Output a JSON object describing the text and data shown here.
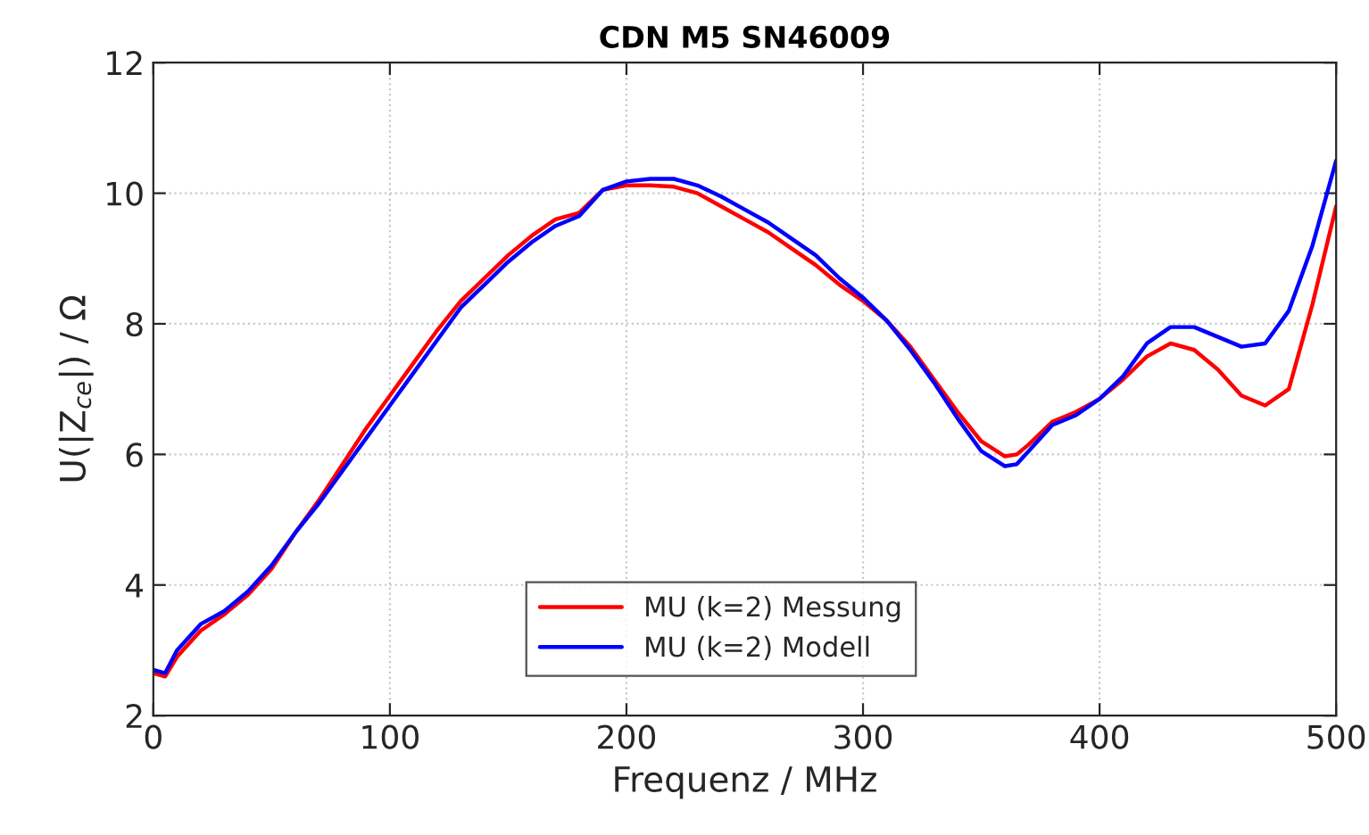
{
  "chart_data": {
    "type": "line",
    "title": "CDN M5 SN46009",
    "xlabel": "Frequenz / MHz",
    "ylabel": "U(|Z$_{ce}$|) / Ω",
    "x": [
      0,
      5,
      10,
      20,
      30,
      40,
      50,
      60,
      70,
      80,
      90,
      100,
      110,
      120,
      130,
      140,
      150,
      160,
      170,
      180,
      190,
      200,
      210,
      220,
      230,
      240,
      250,
      260,
      270,
      280,
      290,
      300,
      310,
      320,
      330,
      340,
      350,
      360,
      365,
      370,
      380,
      390,
      400,
      410,
      420,
      430,
      440,
      450,
      460,
      470,
      480,
      490,
      500
    ],
    "series": [
      {
        "name": "MU (k=2) Messung",
        "color": "#ff0000",
        "values": [
          2.65,
          2.6,
          2.9,
          3.3,
          3.55,
          3.85,
          4.25,
          4.8,
          5.3,
          5.85,
          6.4,
          6.9,
          7.4,
          7.9,
          8.35,
          8.7,
          9.05,
          9.35,
          9.6,
          9.7,
          10.05,
          10.12,
          10.12,
          10.1,
          10.0,
          9.8,
          9.6,
          9.4,
          9.15,
          8.9,
          8.6,
          8.35,
          8.05,
          7.65,
          7.15,
          6.65,
          6.2,
          5.97,
          6.0,
          6.15,
          6.5,
          6.65,
          6.85,
          7.15,
          7.5,
          7.7,
          7.6,
          7.3,
          6.9,
          6.75,
          7.0,
          8.3,
          9.8
        ]
      },
      {
        "name": "MU (k=2) Modell",
        "color": "#0000ff",
        "values": [
          2.7,
          2.65,
          3.0,
          3.4,
          3.6,
          3.9,
          4.3,
          4.8,
          5.25,
          5.75,
          6.25,
          6.75,
          7.25,
          7.75,
          8.25,
          8.6,
          8.95,
          9.25,
          9.5,
          9.65,
          10.05,
          10.18,
          10.22,
          10.22,
          10.12,
          9.95,
          9.75,
          9.55,
          9.3,
          9.05,
          8.7,
          8.4,
          8.05,
          7.6,
          7.1,
          6.55,
          6.05,
          5.82,
          5.85,
          6.05,
          6.45,
          6.6,
          6.85,
          7.2,
          7.7,
          7.95,
          7.95,
          7.8,
          7.65,
          7.7,
          8.2,
          9.2,
          10.5
        ]
      }
    ],
    "xlim": [
      0,
      500
    ],
    "xticks": [
      0,
      100,
      200,
      300,
      400,
      500
    ],
    "ylim": [
      2,
      12
    ],
    "yticks": [
      2,
      4,
      6,
      8,
      10,
      12
    ],
    "grid": true,
    "legend": "bottom",
    "line_style": "solid",
    "marker": "none"
  }
}
